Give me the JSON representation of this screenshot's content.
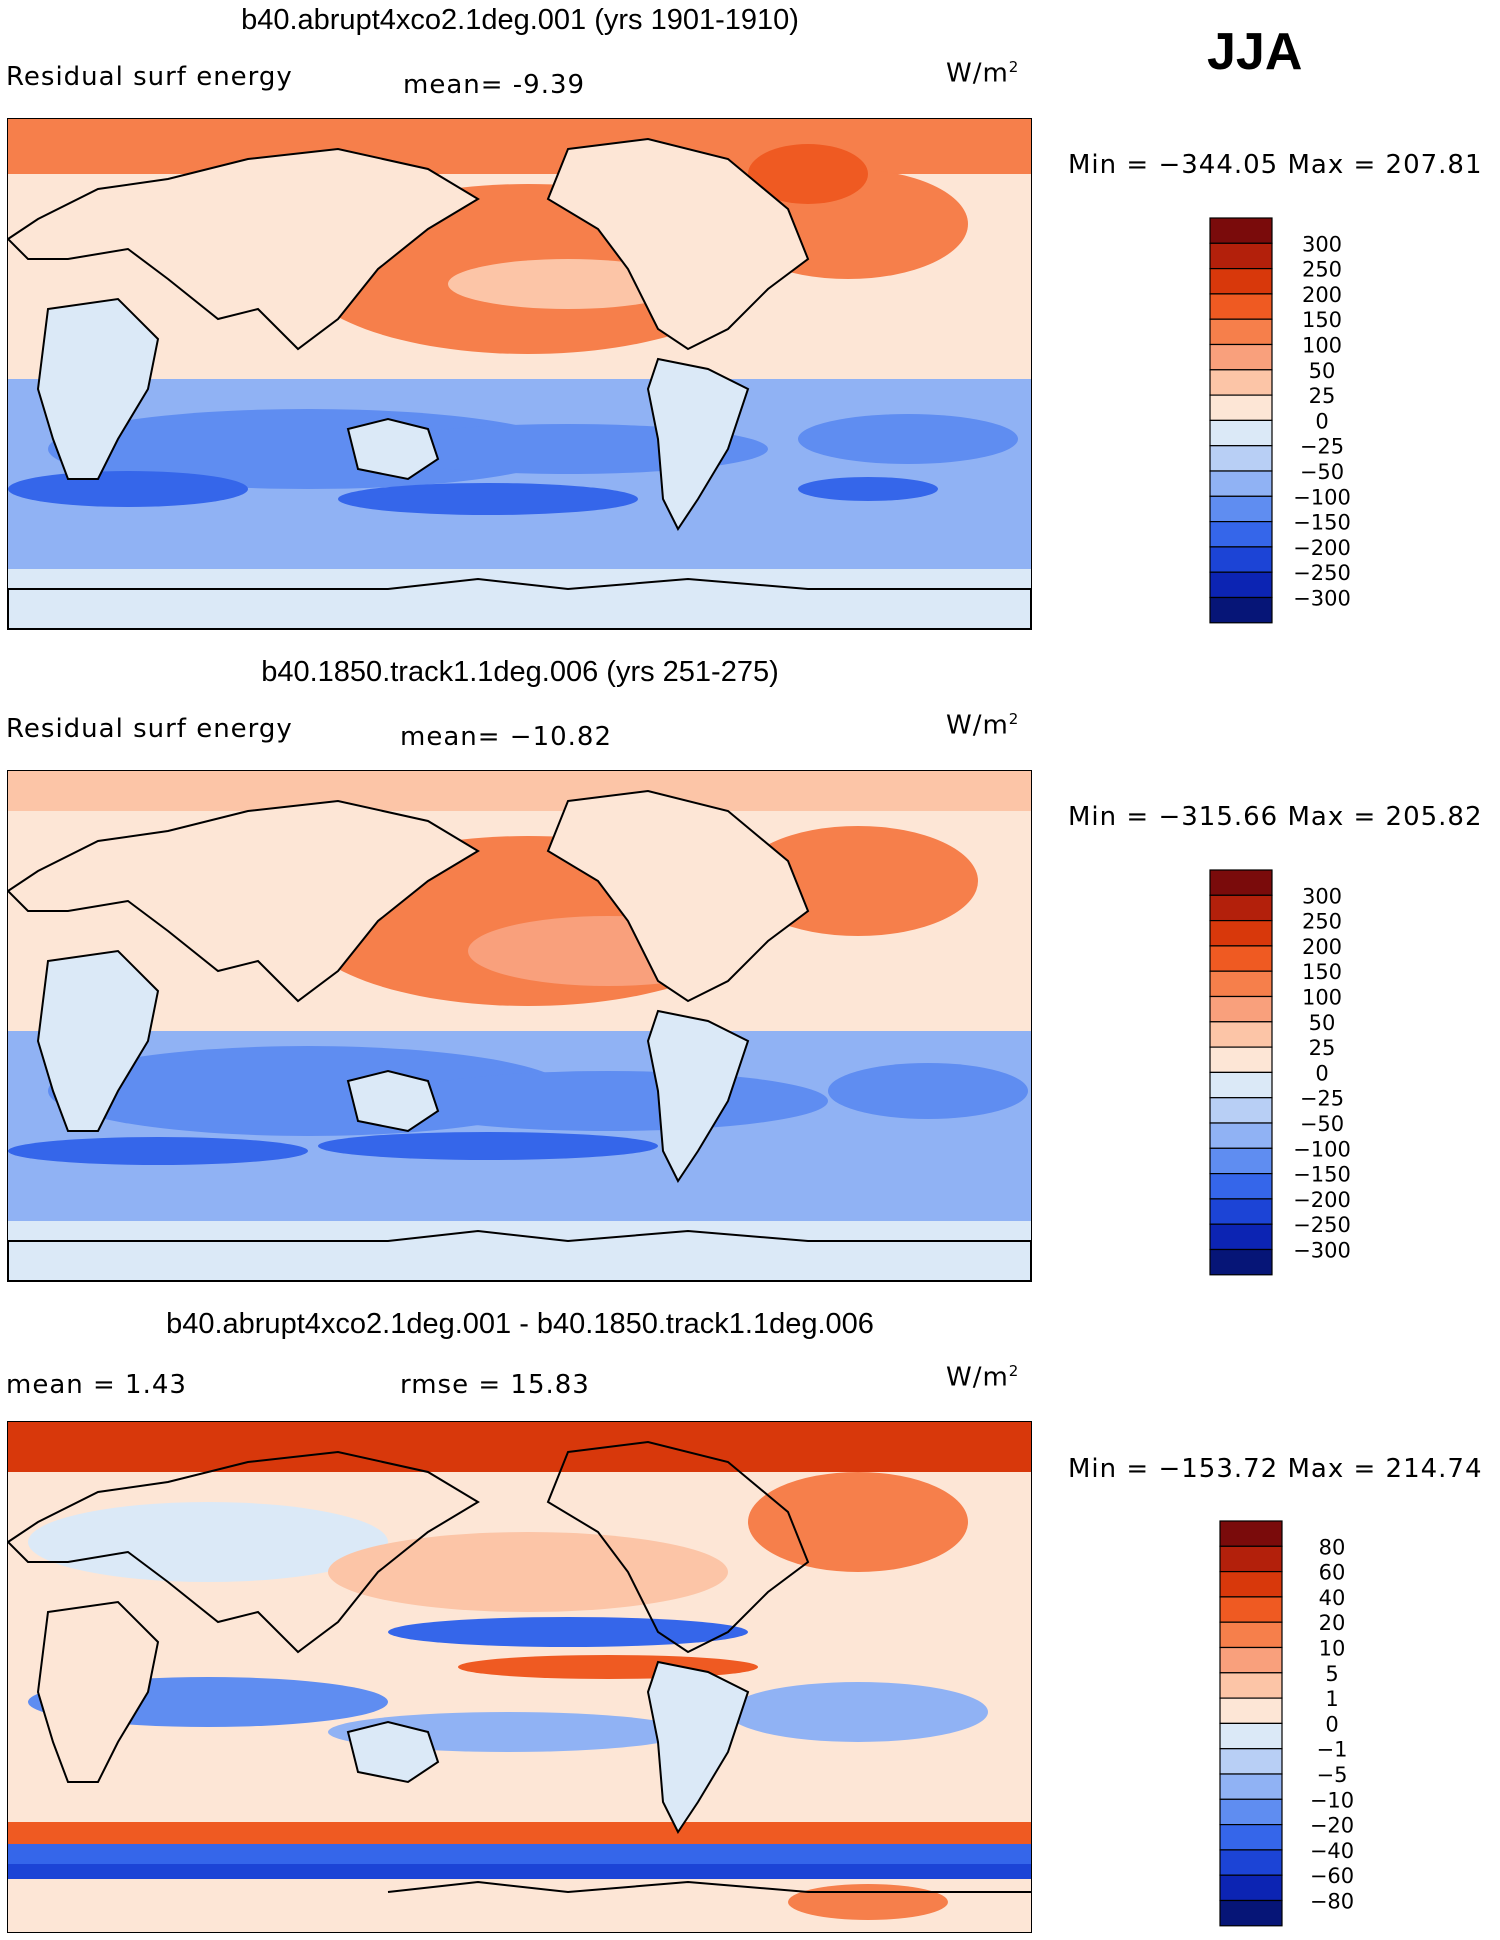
{
  "season": "JJA",
  "units_label": "W/m",
  "units_exp": "2",
  "panels": [
    {
      "title": "b40.abrupt4xco2.1deg.001 (yrs 1901-1910)",
      "left_label": "Residual surf energy",
      "stat1": "mean=   -9.39",
      "stat2": "",
      "minmax": "Min = −344.05 Max = 207.81",
      "legend_labels": [
        "300",
        "250",
        "200",
        "150",
        "100",
        "50",
        "25",
        "0",
        "−25",
        "−50",
        "−100",
        "−150",
        "−200",
        "−250",
        "−300"
      ],
      "variant": "a"
    },
    {
      "title": "b40.1850.track1.1deg.006 (yrs 251-275)",
      "left_label": "Residual surf energy",
      "stat1": "mean= −10.82",
      "stat2": "",
      "minmax": "Min = −315.66 Max = 205.82",
      "legend_labels": [
        "300",
        "250",
        "200",
        "150",
        "100",
        "50",
        "25",
        "0",
        "−25",
        "−50",
        "−100",
        "−150",
        "−200",
        "−250",
        "−300"
      ],
      "variant": "b"
    },
    {
      "title": "b40.abrupt4xco2.1deg.001 - b40.1850.track1.1deg.006",
      "left_label": "mean =   1.43",
      "stat1": "rmse =   15.83",
      "stat2": "",
      "minmax": "Min = −153.72 Max = 214.74",
      "legend_labels": [
        "80",
        "60",
        "40",
        "20",
        "10",
        "5",
        "1",
        "0",
        "−1",
        "−5",
        "−10",
        "−20",
        "−40",
        "−60",
        "−80"
      ],
      "variant": "diff"
    }
  ],
  "colors": {
    "scale": [
      "#7a0b0b",
      "#b3200b",
      "#d8380b",
      "#ef5a22",
      "#f67f4b",
      "#f9a07c",
      "#fcc5a7",
      "#fde6d6",
      "#dbe9f7",
      "#b8cff5",
      "#90b2f4",
      "#5f8df1",
      "#3566ea",
      "#1c44d6",
      "#0c24b3",
      "#061577"
    ]
  }
}
